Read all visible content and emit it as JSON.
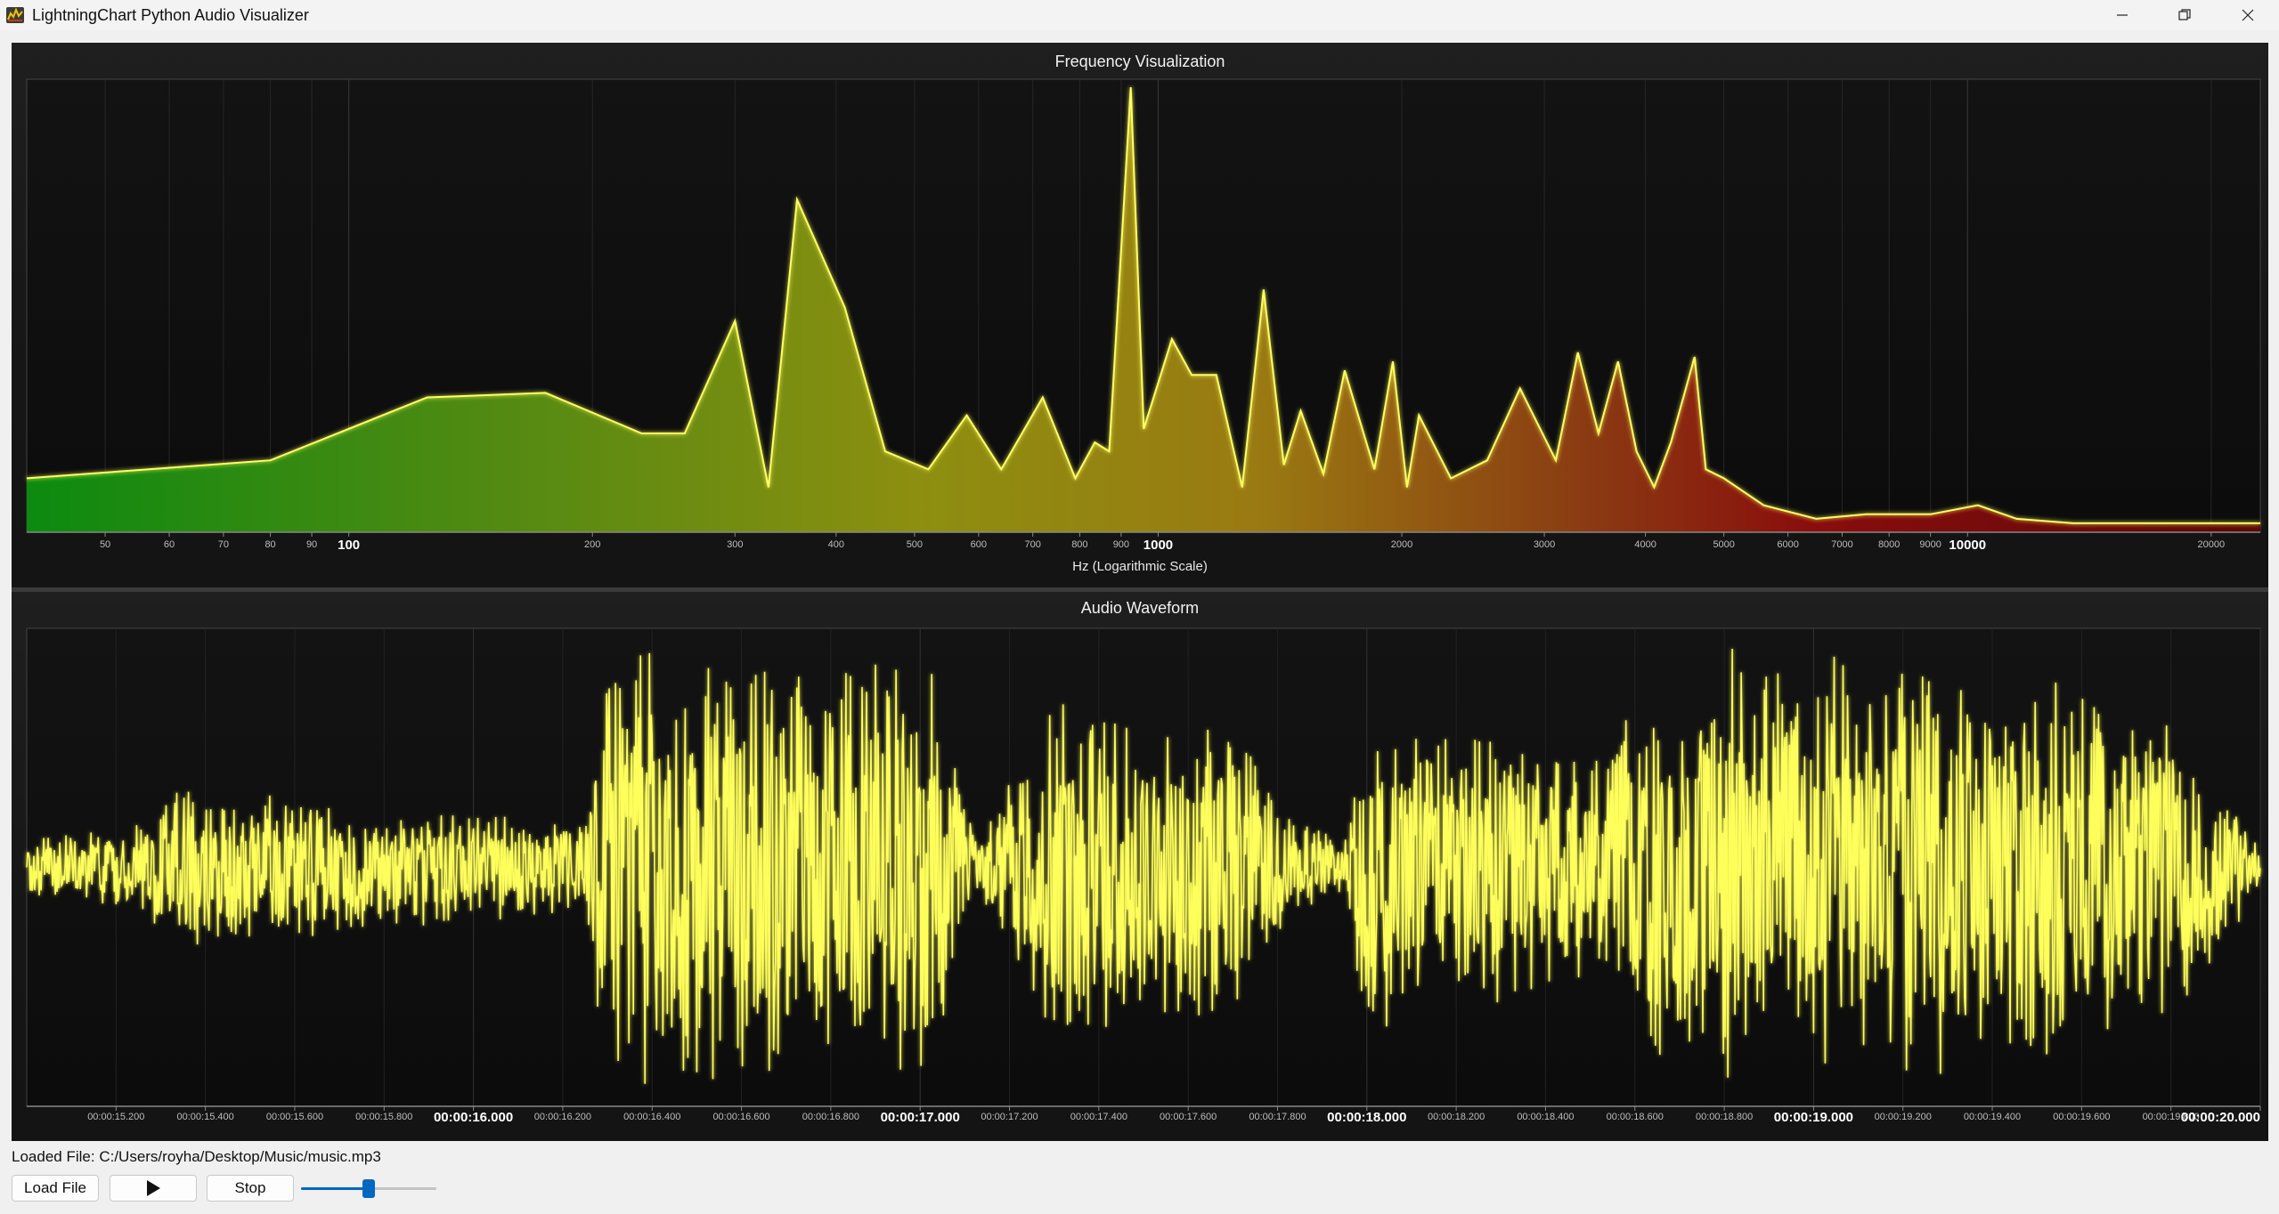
{
  "window": {
    "title": "LightningChart Python Audio Visualizer"
  },
  "frequency_chart": {
    "title": "Frequency Visualization",
    "xlabel": "Hz (Logarithmic Scale)",
    "tick_labels": [
      "50",
      "60",
      "70",
      "80",
      "90",
      "100",
      "200",
      "300",
      "400",
      "500",
      "600",
      "700",
      "800",
      "900",
      "1000",
      "2000",
      "3000",
      "4000",
      "5000",
      "6000",
      "7000",
      "8000",
      "9000",
      "10000",
      "20000"
    ],
    "major_ticks": [
      "100",
      "1000",
      "10000"
    ]
  },
  "waveform_chart": {
    "title": "Audio Waveform",
    "tick_labels": [
      "00:00:15.200",
      "00:00:15.400",
      "00:00:15.600",
      "00:00:15.800",
      "00:00:16.000",
      "00:00:16.200",
      "00:00:16.400",
      "00:00:16.600",
      "00:00:16.800",
      "00:00:17.000",
      "00:00:17.200",
      "00:00:17.400",
      "00:00:17.600",
      "00:00:17.800",
      "00:00:18.000",
      "00:00:18.200",
      "00:00:18.400",
      "00:00:18.600",
      "00:00:18.800",
      "00:00:19.000",
      "00:00:19.200",
      "00:00:19.400",
      "00:00:19.600",
      "00:00:19.800",
      "00:00:20.000"
    ],
    "major_ticks": [
      "00:00:16.000",
      "00:00:17.000",
      "00:00:18.000",
      "00:00:19.000",
      "00:00:20.000"
    ]
  },
  "chart_data": [
    {
      "type": "area",
      "title": "Frequency Visualization",
      "xlabel": "Hz (Logarithmic Scale)",
      "x_scale": "log",
      "xlim": [
        40,
        23000
      ],
      "ylim": [
        0,
        1
      ],
      "fill": "gradient green-yellow-red",
      "line_color": "#ffff60",
      "x": [
        40,
        80,
        125,
        175,
        230,
        260,
        300,
        330,
        358,
        410,
        460,
        520,
        580,
        640,
        720,
        790,
        835,
        870,
        925,
        960,
        1040,
        1100,
        1180,
        1270,
        1350,
        1430,
        1500,
        1600,
        1700,
        1850,
        1950,
        2030,
        2100,
        2300,
        2550,
        2800,
        3100,
        3300,
        3500,
        3700,
        3900,
        4100,
        4300,
        4600,
        4750,
        5000,
        5600,
        6500,
        7500,
        9000,
        10300,
        11500,
        13500,
        16000,
        23000
      ],
      "values": [
        0.12,
        0.16,
        0.3,
        0.31,
        0.22,
        0.22,
        0.47,
        0.1,
        0.74,
        0.5,
        0.18,
        0.14,
        0.26,
        0.14,
        0.3,
        0.12,
        0.2,
        0.18,
        0.99,
        0.23,
        0.43,
        0.35,
        0.35,
        0.1,
        0.54,
        0.15,
        0.27,
        0.13,
        0.36,
        0.14,
        0.38,
        0.1,
        0.26,
        0.12,
        0.16,
        0.32,
        0.16,
        0.4,
        0.22,
        0.38,
        0.18,
        0.1,
        0.2,
        0.39,
        0.14,
        0.12,
        0.06,
        0.03,
        0.04,
        0.04,
        0.06,
        0.03,
        0.02,
        0.02,
        0.02
      ]
    },
    {
      "type": "line",
      "title": "Audio Waveform",
      "xlabel": "",
      "ylabel": "",
      "xlim": [
        "00:00:15.000",
        "00:00:20.000"
      ],
      "ylim": [
        -1,
        1
      ],
      "line_color": "#ffff60",
      "series": [
        {
          "segment_times_s": [
            15.0,
            15.27,
            15.32,
            16.25,
            16.3,
            16.55,
            16.8,
            17.03,
            17.12,
            17.3,
            17.45,
            17.7,
            17.82,
            17.95,
            18.0,
            18.1,
            18.3,
            18.5,
            18.62,
            18.82,
            19.0,
            19.3,
            19.58,
            19.8,
            20.0
          ],
          "segment_amplitudes": [
            0.12,
            0.2,
            0.35,
            0.2,
            0.95,
            0.92,
            0.9,
            0.95,
            0.15,
            0.75,
            0.7,
            0.62,
            0.25,
            0.12,
            0.75,
            0.6,
            0.62,
            0.45,
            0.8,
            0.95,
            0.9,
            0.92,
            0.8,
            0.7,
            0.1
          ]
        }
      ]
    }
  ],
  "footer": {
    "loaded_file_label": "Loaded File:",
    "loaded_file_path": "C:/Users/royha/Desktop/Music/music.mp3",
    "load_button": "Load File",
    "play_icon": "play-icon",
    "stop_button": "Stop",
    "volume": 0.5
  }
}
